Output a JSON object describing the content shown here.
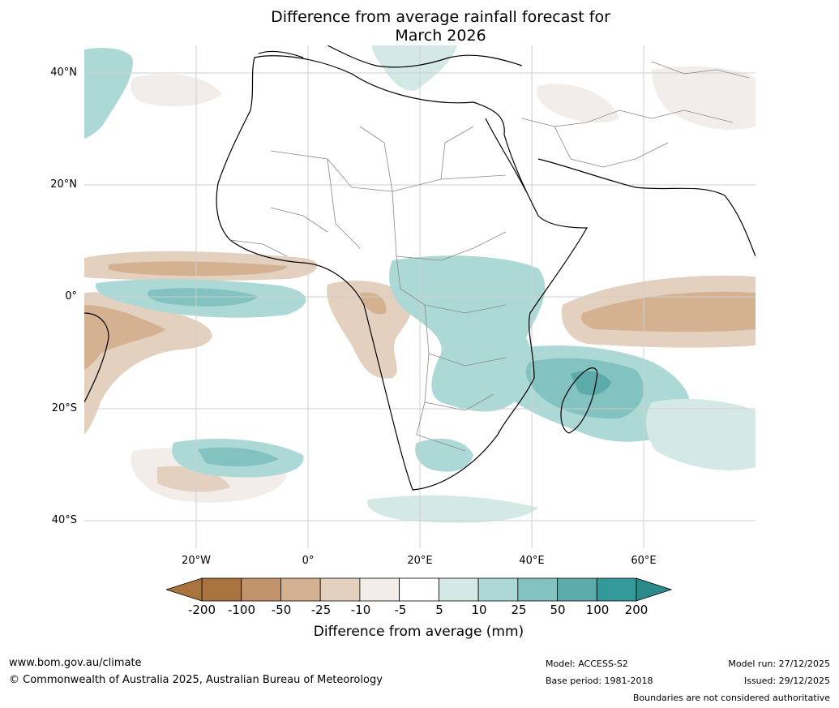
{
  "title": {
    "line1": "Difference from average rainfall forecast for",
    "line2": "March 2026"
  },
  "axes": {
    "lat_labels": [
      "40°N",
      "20°N",
      "0°",
      "20°S",
      "40°S"
    ],
    "lat_values": [
      40,
      20,
      0,
      -20,
      -40
    ],
    "lon_labels": [
      "20°W",
      "0°",
      "20°E",
      "40°E",
      "60°E"
    ],
    "lon_values": [
      -20,
      0,
      20,
      40,
      60
    ],
    "extent": {
      "lon_min": -40,
      "lon_max": 80,
      "lat_min": -45,
      "lat_max": 45
    }
  },
  "colorbar": {
    "ticks": [
      "-200",
      "-100",
      "-50",
      "-25",
      "-10",
      "-5",
      "5",
      "10",
      "25",
      "50",
      "100",
      "200"
    ],
    "colors": [
      "#a8733f",
      "#c0936a",
      "#d4b191",
      "#e3d0bf",
      "#f2ede8",
      "#ffffff",
      "#d4e8e6",
      "#acd8d6",
      "#82c2c1",
      "#5cabaa",
      "#33999a"
    ],
    "extend_low_color": "#a8733f",
    "extend_high_color": "#2c8a8b",
    "label": "Difference from average (mm)"
  },
  "footer": {
    "website": "www.bom.gov.au/climate",
    "copyright": "© Commonwealth of Australia 2025, Australian Bureau of Meteorology",
    "model": "Model: ACCESS-S2",
    "base_period": "Base period: 1981-2018",
    "model_run": "Model run: 27/12/2025",
    "issued": "Issued: 29/12/2025",
    "disclaimer": "Boundaries are not considered authoritative"
  }
}
